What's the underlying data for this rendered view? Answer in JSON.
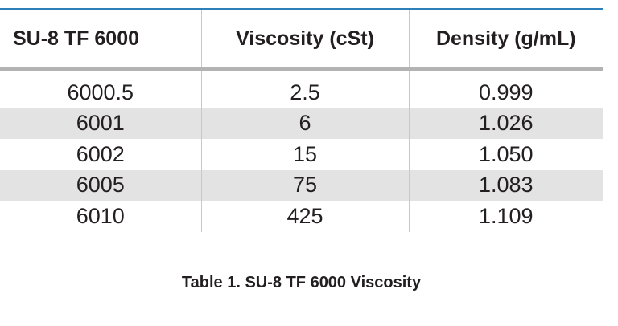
{
  "table": {
    "headers": [
      "SU-8 TF 6000",
      "Viscosity (cSt)",
      "Density (g/mL)"
    ],
    "rows": [
      [
        "6000.5",
        "2.5",
        "0.999"
      ],
      [
        "6001",
        "6",
        "1.026"
      ],
      [
        "6002",
        "15",
        "1.050"
      ],
      [
        "6005",
        "75",
        "1.083"
      ],
      [
        "6010",
        "425",
        "1.109"
      ]
    ],
    "header_rule_color": "#2c7fb8",
    "row_shade_color": "#e3e3e3"
  },
  "caption": "Table 1. SU-8 TF 6000 Viscosity"
}
